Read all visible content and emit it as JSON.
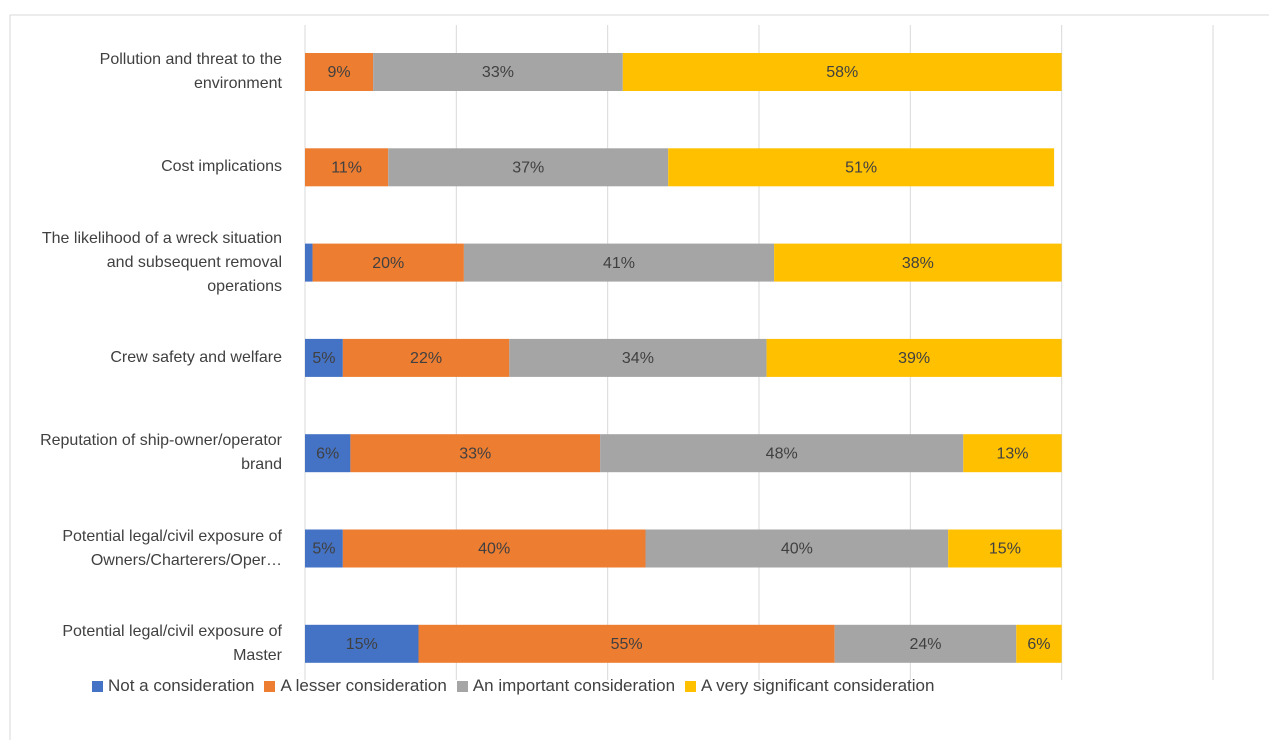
{
  "chart_data": {
    "type": "stacked-bar-horizontal",
    "categories": [
      "Pollution and threat to the environment",
      "Cost implications",
      "The likelihood of a wreck situation and subsequent removal operations",
      "Crew safety and welfare",
      "Reputation of ship-owner/operator brand",
      "Potential legal/civil exposure of Owners/Charterers/Oper…",
      "Potential legal/civil exposure of Master"
    ],
    "series": [
      {
        "name": "Not a consideration",
        "color": "#4472c4",
        "values": [
          0,
          0,
          1,
          5,
          6,
          5,
          15
        ],
        "value_labels": [
          null,
          null,
          null,
          "5%",
          "6%",
          "5%",
          "15%"
        ]
      },
      {
        "name": "A lesser consideration",
        "color": "#ed7d31",
        "values": [
          9,
          11,
          20,
          22,
          33,
          40,
          55
        ],
        "value_labels": [
          "9%",
          "11%",
          "20%",
          "22%",
          "33%",
          "40%",
          "55%"
        ]
      },
      {
        "name": "An important consideration",
        "color": "#a5a5a5",
        "values": [
          33,
          37,
          41,
          34,
          48,
          40,
          24
        ],
        "value_labels": [
          "33%",
          "37%",
          "41%",
          "34%",
          "48%",
          "40%",
          "24%"
        ]
      },
      {
        "name": "A very significant consideration",
        "color": "#ffc000",
        "values": [
          58,
          51,
          38,
          39,
          13,
          15,
          6
        ],
        "value_labels": [
          "58%",
          "51%",
          "38%",
          "39%",
          "13%",
          "15%",
          "6%"
        ]
      }
    ],
    "xlim": [
      0,
      120
    ],
    "xticks": [
      0,
      20,
      40,
      60,
      80,
      100,
      120
    ],
    "grid": true
  }
}
